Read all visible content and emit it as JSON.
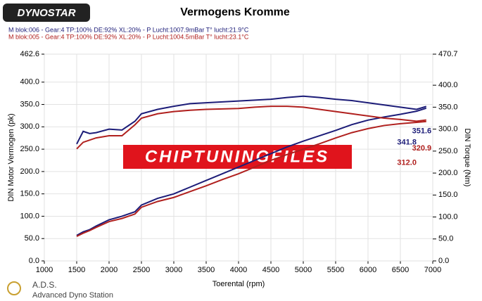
{
  "chart_data": {
    "type": "line",
    "title": "Vermogens Kromme",
    "logo": "DYNOSTAR",
    "footer_title": "A.D.S.",
    "footer_subtitle": "Advanced Dyno Station",
    "watermark": "CHIPTUNINGFILES",
    "xlabel": "Toerental (rpm)",
    "ylabel": "DIN Motor Vermogen (pk)",
    "y2label": "DIN Torque (Nm)",
    "grid": true,
    "xlim": [
      1000,
      7000
    ],
    "xticks": [
      1000,
      1500,
      2000,
      2500,
      3000,
      3500,
      4000,
      4500,
      5000,
      5500,
      6000,
      6500,
      7000
    ],
    "ylim": [
      0,
      462.6
    ],
    "yticks": [
      {
        "value": 0,
        "label": "0.0"
      },
      {
        "value": 50,
        "label": "50.0"
      },
      {
        "value": 100,
        "label": "100.0"
      },
      {
        "value": 150,
        "label": "150.0"
      },
      {
        "value": 200,
        "label": "200.0"
      },
      {
        "value": 250,
        "label": "250.0"
      },
      {
        "value": 300,
        "label": "300.0"
      },
      {
        "value": 350,
        "label": "350.0"
      },
      {
        "value": 400,
        "label": "400.0"
      },
      462.6
    ],
    "y2lim": [
      0,
      470.7
    ],
    "y2ticks": [
      {
        "value": 0,
        "label": "0.0"
      },
      {
        "value": 50,
        "label": "50.0"
      },
      {
        "value": 100,
        "label": "100.0"
      },
      {
        "value": 150,
        "label": "150.0"
      },
      {
        "value": 200,
        "label": "200.0"
      },
      {
        "value": 250,
        "label": "250.0"
      },
      {
        "value": 300,
        "label": "300.0"
      },
      {
        "value": 350,
        "label": "350.0"
      },
      {
        "value": 400,
        "label": "400.0"
      },
      470.7
    ],
    "x": [
      1500,
      1600,
      1700,
      1800,
      2000,
      2200,
      2400,
      2500,
      2750,
      3000,
      3250,
      3500,
      3750,
      4000,
      4250,
      4500,
      4750,
      5000,
      5250,
      5500,
      5750,
      6000,
      6250,
      6500,
      6750,
      6900
    ],
    "series": [
      {
        "name": "M blok:006 - Gear:4 TP:100% DE:92% XL:20%      - P Lucht:1007.9mBar T° lucht:21.9°C",
        "color": "#1c1c78",
        "values": [
          57,
          65,
          70,
          78,
          92,
          100,
          110,
          125,
          140,
          150,
          165,
          180,
          195,
          210,
          225,
          240,
          255,
          268,
          280,
          292,
          305,
          315,
          322,
          328,
          335,
          341.8
        ]
      },
      {
        "name": "M blok:005 - Gear:4 TP:100% DE:92% XL:20%      - P Lucht:1004.5mBar T° lucht:23.1°C",
        "color": "#b0201e",
        "values": [
          55,
          62,
          68,
          75,
          88,
          95,
          105,
          120,
          133,
          142,
          155,
          168,
          182,
          195,
          210,
          225,
          238,
          250,
          262,
          275,
          287,
          296,
          303,
          307,
          310,
          312
        ]
      },
      {
        "axis": "y2",
        "color": "#1c1c78",
        "values": [
          266,
          295,
          290,
          292,
          300,
          298,
          318,
          335,
          345,
          352,
          358,
          360,
          362,
          364,
          366,
          368,
          372,
          375,
          372,
          368,
          365,
          360,
          355,
          350,
          345,
          351.6
        ]
      },
      {
        "axis": "y2",
        "color": "#b0201e",
        "values": [
          255,
          270,
          275,
          280,
          285,
          285,
          310,
          325,
          335,
          340,
          343,
          345,
          346,
          347,
          350,
          352,
          352,
          350,
          345,
          340,
          335,
          330,
          325,
          322,
          318,
          320.9
        ]
      }
    ],
    "annotations": [
      {
        "text": "341.8",
        "x": 6600,
        "y": 265,
        "color": "#1c1c78"
      },
      {
        "text": "312.0",
        "x": 6600,
        "y": 219,
        "color": "#b0201e"
      },
      {
        "text": "351.6",
        "x": 6830,
        "y": 290,
        "color": "#1c1c78"
      },
      {
        "text": "320.9",
        "x": 6830,
        "y": 252,
        "color": "#b0201e"
      }
    ]
  }
}
